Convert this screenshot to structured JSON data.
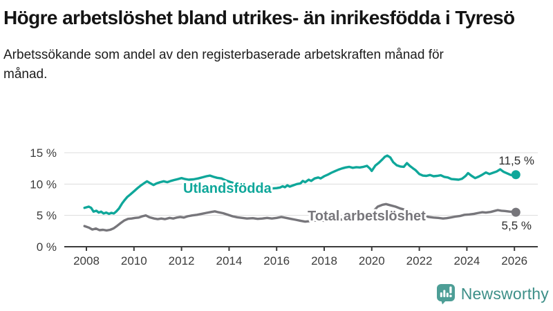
{
  "header": {
    "title": "Högre arbetslöshet bland utrikes- än inrikesfödda i Tyresö",
    "subtitle": "Arbetssökande som andel av den registerbaserade arbetskraften månad för månad."
  },
  "chart_data": {
    "type": "line",
    "unit": "%",
    "grid": "horizontal",
    "x_axis": {
      "tick_years": [
        2008,
        2010,
        2012,
        2014,
        2016,
        2018,
        2020,
        2022,
        2024,
        2026
      ],
      "range": [
        2007.92,
        2026.06
      ]
    },
    "y_axis": {
      "tick_values": [
        0,
        5,
        10,
        15
      ],
      "tick_labels": [
        "0 %",
        "5 %",
        "10 %",
        "15 %"
      ],
      "range": [
        0,
        15
      ]
    },
    "series": [
      {
        "name": "Utlandsfödda",
        "color": "#0FA79A",
        "end_label": "11,5 %",
        "end_value": 11.5,
        "points": [
          [
            2007.92,
            6.2
          ],
          [
            2008.1,
            6.4
          ],
          [
            2008.2,
            6.2
          ],
          [
            2008.3,
            5.6
          ],
          [
            2008.42,
            5.75
          ],
          [
            2008.52,
            5.45
          ],
          [
            2008.62,
            5.6
          ],
          [
            2008.72,
            5.3
          ],
          [
            2008.83,
            5.45
          ],
          [
            2008.95,
            5.25
          ],
          [
            2009.05,
            5.4
          ],
          [
            2009.15,
            5.3
          ],
          [
            2009.25,
            5.6
          ],
          [
            2009.37,
            6.1
          ],
          [
            2009.5,
            6.9
          ],
          [
            2009.6,
            7.4
          ],
          [
            2009.72,
            7.95
          ],
          [
            2009.85,
            8.35
          ],
          [
            2010.0,
            8.85
          ],
          [
            2010.15,
            9.35
          ],
          [
            2010.3,
            9.8
          ],
          [
            2010.45,
            10.2
          ],
          [
            2010.55,
            10.45
          ],
          [
            2010.7,
            10.1
          ],
          [
            2010.82,
            9.85
          ],
          [
            2010.95,
            10.1
          ],
          [
            2011.1,
            10.3
          ],
          [
            2011.25,
            10.45
          ],
          [
            2011.4,
            10.3
          ],
          [
            2011.55,
            10.5
          ],
          [
            2011.7,
            10.65
          ],
          [
            2011.85,
            10.8
          ],
          [
            2012.0,
            10.95
          ],
          [
            2012.15,
            10.8
          ],
          [
            2012.3,
            10.7
          ],
          [
            2012.5,
            10.75
          ],
          [
            2012.7,
            10.9
          ],
          [
            2012.9,
            11.1
          ],
          [
            2013.05,
            11.25
          ],
          [
            2013.2,
            11.35
          ],
          [
            2013.35,
            11.15
          ],
          [
            2013.5,
            11.0
          ],
          [
            2013.68,
            10.9
          ],
          [
            2013.85,
            10.6
          ],
          [
            2014.0,
            10.4
          ],
          [
            2014.2,
            10.15
          ],
          [
            2014.4,
            9.95
          ],
          [
            2014.6,
            9.8
          ],
          [
            2014.8,
            9.6
          ],
          [
            2015.0,
            9.5
          ],
          [
            2015.2,
            9.4
          ],
          [
            2015.4,
            9.3
          ],
          [
            2015.6,
            9.25
          ],
          [
            2015.8,
            9.3
          ],
          [
            2016.0,
            9.35
          ],
          [
            2016.15,
            9.45
          ],
          [
            2016.25,
            9.65
          ],
          [
            2016.35,
            9.5
          ],
          [
            2016.45,
            9.8
          ],
          [
            2016.55,
            9.6
          ],
          [
            2016.7,
            9.8
          ],
          [
            2016.85,
            10.0
          ],
          [
            2017.0,
            10.1
          ],
          [
            2017.1,
            10.5
          ],
          [
            2017.2,
            10.3
          ],
          [
            2017.35,
            10.7
          ],
          [
            2017.45,
            10.5
          ],
          [
            2017.6,
            10.9
          ],
          [
            2017.75,
            11.05
          ],
          [
            2017.85,
            10.9
          ],
          [
            2018.0,
            11.25
          ],
          [
            2018.15,
            11.5
          ],
          [
            2018.3,
            11.8
          ],
          [
            2018.45,
            12.05
          ],
          [
            2018.6,
            12.3
          ],
          [
            2018.75,
            12.5
          ],
          [
            2018.9,
            12.65
          ],
          [
            2019.05,
            12.75
          ],
          [
            2019.2,
            12.6
          ],
          [
            2019.35,
            12.7
          ],
          [
            2019.5,
            12.65
          ],
          [
            2019.65,
            12.75
          ],
          [
            2019.8,
            12.9
          ],
          [
            2019.92,
            12.5
          ],
          [
            2020.0,
            12.1
          ],
          [
            2020.15,
            12.95
          ],
          [
            2020.3,
            13.4
          ],
          [
            2020.45,
            13.95
          ],
          [
            2020.55,
            14.35
          ],
          [
            2020.65,
            14.55
          ],
          [
            2020.78,
            14.25
          ],
          [
            2020.9,
            13.5
          ],
          [
            2021.05,
            13.0
          ],
          [
            2021.2,
            12.8
          ],
          [
            2021.35,
            12.75
          ],
          [
            2021.48,
            13.35
          ],
          [
            2021.6,
            12.9
          ],
          [
            2021.72,
            12.55
          ],
          [
            2021.85,
            12.2
          ],
          [
            2022.0,
            11.6
          ],
          [
            2022.15,
            11.35
          ],
          [
            2022.3,
            11.3
          ],
          [
            2022.45,
            11.45
          ],
          [
            2022.6,
            11.25
          ],
          [
            2022.75,
            11.3
          ],
          [
            2022.9,
            11.4
          ],
          [
            2023.05,
            11.15
          ],
          [
            2023.2,
            11.05
          ],
          [
            2023.35,
            10.8
          ],
          [
            2023.5,
            10.75
          ],
          [
            2023.65,
            10.7
          ],
          [
            2023.8,
            10.85
          ],
          [
            2023.95,
            11.3
          ],
          [
            2024.05,
            11.75
          ],
          [
            2024.2,
            11.3
          ],
          [
            2024.35,
            10.95
          ],
          [
            2024.5,
            11.2
          ],
          [
            2024.65,
            11.5
          ],
          [
            2024.8,
            11.85
          ],
          [
            2024.95,
            11.6
          ],
          [
            2025.1,
            11.8
          ],
          [
            2025.25,
            12.0
          ],
          [
            2025.4,
            12.35
          ],
          [
            2025.55,
            11.95
          ],
          [
            2025.7,
            11.7
          ],
          [
            2025.85,
            11.45
          ],
          [
            2026.0,
            11.4
          ],
          [
            2026.06,
            11.5
          ]
        ]
      },
      {
        "name": "Total arbetslöshet",
        "color": "#77767B",
        "end_label": "5,5 %",
        "end_value": 5.5,
        "points": [
          [
            2007.92,
            3.3
          ],
          [
            2008.1,
            3.05
          ],
          [
            2008.25,
            2.75
          ],
          [
            2008.4,
            2.9
          ],
          [
            2008.55,
            2.65
          ],
          [
            2008.7,
            2.7
          ],
          [
            2008.85,
            2.6
          ],
          [
            2009.0,
            2.7
          ],
          [
            2009.15,
            2.95
          ],
          [
            2009.3,
            3.35
          ],
          [
            2009.45,
            3.8
          ],
          [
            2009.6,
            4.2
          ],
          [
            2009.75,
            4.45
          ],
          [
            2009.9,
            4.5
          ],
          [
            2010.05,
            4.6
          ],
          [
            2010.2,
            4.65
          ],
          [
            2010.35,
            4.85
          ],
          [
            2010.5,
            5.0
          ],
          [
            2010.65,
            4.7
          ],
          [
            2010.85,
            4.5
          ],
          [
            2011.0,
            4.4
          ],
          [
            2011.15,
            4.5
          ],
          [
            2011.3,
            4.4
          ],
          [
            2011.5,
            4.6
          ],
          [
            2011.65,
            4.5
          ],
          [
            2011.8,
            4.65
          ],
          [
            2011.95,
            4.75
          ],
          [
            2012.1,
            4.65
          ],
          [
            2012.25,
            4.85
          ],
          [
            2012.45,
            5.0
          ],
          [
            2012.65,
            5.1
          ],
          [
            2012.85,
            5.25
          ],
          [
            2013.05,
            5.4
          ],
          [
            2013.25,
            5.55
          ],
          [
            2013.4,
            5.65
          ],
          [
            2013.55,
            5.5
          ],
          [
            2013.75,
            5.35
          ],
          [
            2013.95,
            5.1
          ],
          [
            2014.15,
            4.85
          ],
          [
            2014.35,
            4.7
          ],
          [
            2014.55,
            4.6
          ],
          [
            2014.75,
            4.5
          ],
          [
            2015.0,
            4.55
          ],
          [
            2015.2,
            4.45
          ],
          [
            2015.4,
            4.5
          ],
          [
            2015.6,
            4.6
          ],
          [
            2015.8,
            4.5
          ],
          [
            2016.0,
            4.6
          ],
          [
            2016.2,
            4.75
          ],
          [
            2016.4,
            4.6
          ],
          [
            2016.6,
            4.45
          ],
          [
            2016.8,
            4.3
          ],
          [
            2017.0,
            4.15
          ],
          [
            2017.2,
            4.0
          ],
          [
            2017.45,
            4.1
          ],
          [
            2017.7,
            4.2
          ],
          [
            2018.0,
            4.15
          ],
          [
            2018.3,
            4.2
          ],
          [
            2018.6,
            4.3
          ],
          [
            2018.9,
            4.4
          ],
          [
            2019.2,
            4.45
          ],
          [
            2019.5,
            4.6
          ],
          [
            2019.75,
            4.8
          ],
          [
            2019.95,
            5.0
          ],
          [
            2020.1,
            5.8
          ],
          [
            2020.25,
            6.4
          ],
          [
            2020.45,
            6.7
          ],
          [
            2020.6,
            6.8
          ],
          [
            2020.8,
            6.6
          ],
          [
            2021.0,
            6.4
          ],
          [
            2021.2,
            6.1
          ],
          [
            2021.4,
            5.9
          ],
          [
            2021.6,
            5.6
          ],
          [
            2021.8,
            5.3
          ],
          [
            2022.0,
            5.1
          ],
          [
            2022.2,
            4.9
          ],
          [
            2022.4,
            4.75
          ],
          [
            2022.6,
            4.65
          ],
          [
            2022.8,
            4.6
          ],
          [
            2023.0,
            4.5
          ],
          [
            2023.15,
            4.55
          ],
          [
            2023.3,
            4.65
          ],
          [
            2023.5,
            4.8
          ],
          [
            2023.7,
            4.9
          ],
          [
            2023.9,
            5.1
          ],
          [
            2024.1,
            5.15
          ],
          [
            2024.3,
            5.25
          ],
          [
            2024.5,
            5.4
          ],
          [
            2024.65,
            5.5
          ],
          [
            2024.8,
            5.45
          ],
          [
            2025.0,
            5.55
          ],
          [
            2025.15,
            5.7
          ],
          [
            2025.3,
            5.85
          ],
          [
            2025.45,
            5.75
          ],
          [
            2025.6,
            5.7
          ],
          [
            2025.8,
            5.6
          ],
          [
            2026.0,
            5.55
          ],
          [
            2026.06,
            5.5
          ]
        ]
      }
    ]
  },
  "branding": {
    "logo_text": "Newsworthy"
  }
}
